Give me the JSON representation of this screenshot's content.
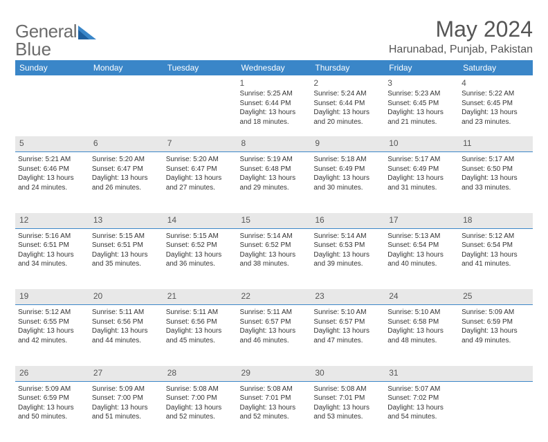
{
  "type": "calendar",
  "logo": {
    "text1": "General",
    "text2": "Blue",
    "accent_color": "#3a86c8",
    "text_color": "#6b6b6b"
  },
  "title": "May 2024",
  "location": "Harunabad, Punjab, Pakistan",
  "colors": {
    "header_bg": "#3a86c8",
    "header_text": "#ffffff",
    "row_divider": "#3a86c8",
    "weekday_label_bg": "#e8e8e8",
    "text": "#333333",
    "muted": "#555555",
    "background": "#ffffff"
  },
  "fonts": {
    "title_size": 32,
    "location_size": 16,
    "dow_size": 12,
    "daynum_size": 12,
    "body_size": 10
  },
  "days_of_week": [
    "Sunday",
    "Monday",
    "Tuesday",
    "Wednesday",
    "Thursday",
    "Friday",
    "Saturday"
  ],
  "weeks": [
    [
      null,
      null,
      null,
      {
        "n": "1",
        "sunrise": "5:25 AM",
        "sunset": "6:44 PM",
        "dl1": "Daylight: 13 hours",
        "dl2": "and 18 minutes."
      },
      {
        "n": "2",
        "sunrise": "5:24 AM",
        "sunset": "6:44 PM",
        "dl1": "Daylight: 13 hours",
        "dl2": "and 20 minutes."
      },
      {
        "n": "3",
        "sunrise": "5:23 AM",
        "sunset": "6:45 PM",
        "dl1": "Daylight: 13 hours",
        "dl2": "and 21 minutes."
      },
      {
        "n": "4",
        "sunrise": "5:22 AM",
        "sunset": "6:45 PM",
        "dl1": "Daylight: 13 hours",
        "dl2": "and 23 minutes."
      }
    ],
    [
      {
        "n": "5",
        "sunrise": "5:21 AM",
        "sunset": "6:46 PM",
        "dl1": "Daylight: 13 hours",
        "dl2": "and 24 minutes."
      },
      {
        "n": "6",
        "sunrise": "5:20 AM",
        "sunset": "6:47 PM",
        "dl1": "Daylight: 13 hours",
        "dl2": "and 26 minutes."
      },
      {
        "n": "7",
        "sunrise": "5:20 AM",
        "sunset": "6:47 PM",
        "dl1": "Daylight: 13 hours",
        "dl2": "and 27 minutes."
      },
      {
        "n": "8",
        "sunrise": "5:19 AM",
        "sunset": "6:48 PM",
        "dl1": "Daylight: 13 hours",
        "dl2": "and 29 minutes."
      },
      {
        "n": "9",
        "sunrise": "5:18 AM",
        "sunset": "6:49 PM",
        "dl1": "Daylight: 13 hours",
        "dl2": "and 30 minutes."
      },
      {
        "n": "10",
        "sunrise": "5:17 AM",
        "sunset": "6:49 PM",
        "dl1": "Daylight: 13 hours",
        "dl2": "and 31 minutes."
      },
      {
        "n": "11",
        "sunrise": "5:17 AM",
        "sunset": "6:50 PM",
        "dl1": "Daylight: 13 hours",
        "dl2": "and 33 minutes."
      }
    ],
    [
      {
        "n": "12",
        "sunrise": "5:16 AM",
        "sunset": "6:51 PM",
        "dl1": "Daylight: 13 hours",
        "dl2": "and 34 minutes."
      },
      {
        "n": "13",
        "sunrise": "5:15 AM",
        "sunset": "6:51 PM",
        "dl1": "Daylight: 13 hours",
        "dl2": "and 35 minutes."
      },
      {
        "n": "14",
        "sunrise": "5:15 AM",
        "sunset": "6:52 PM",
        "dl1": "Daylight: 13 hours",
        "dl2": "and 36 minutes."
      },
      {
        "n": "15",
        "sunrise": "5:14 AM",
        "sunset": "6:52 PM",
        "dl1": "Daylight: 13 hours",
        "dl2": "and 38 minutes."
      },
      {
        "n": "16",
        "sunrise": "5:14 AM",
        "sunset": "6:53 PM",
        "dl1": "Daylight: 13 hours",
        "dl2": "and 39 minutes."
      },
      {
        "n": "17",
        "sunrise": "5:13 AM",
        "sunset": "6:54 PM",
        "dl1": "Daylight: 13 hours",
        "dl2": "and 40 minutes."
      },
      {
        "n": "18",
        "sunrise": "5:12 AM",
        "sunset": "6:54 PM",
        "dl1": "Daylight: 13 hours",
        "dl2": "and 41 minutes."
      }
    ],
    [
      {
        "n": "19",
        "sunrise": "5:12 AM",
        "sunset": "6:55 PM",
        "dl1": "Daylight: 13 hours",
        "dl2": "and 42 minutes."
      },
      {
        "n": "20",
        "sunrise": "5:11 AM",
        "sunset": "6:56 PM",
        "dl1": "Daylight: 13 hours",
        "dl2": "and 44 minutes."
      },
      {
        "n": "21",
        "sunrise": "5:11 AM",
        "sunset": "6:56 PM",
        "dl1": "Daylight: 13 hours",
        "dl2": "and 45 minutes."
      },
      {
        "n": "22",
        "sunrise": "5:11 AM",
        "sunset": "6:57 PM",
        "dl1": "Daylight: 13 hours",
        "dl2": "and 46 minutes."
      },
      {
        "n": "23",
        "sunrise": "5:10 AM",
        "sunset": "6:57 PM",
        "dl1": "Daylight: 13 hours",
        "dl2": "and 47 minutes."
      },
      {
        "n": "24",
        "sunrise": "5:10 AM",
        "sunset": "6:58 PM",
        "dl1": "Daylight: 13 hours",
        "dl2": "and 48 minutes."
      },
      {
        "n": "25",
        "sunrise": "5:09 AM",
        "sunset": "6:59 PM",
        "dl1": "Daylight: 13 hours",
        "dl2": "and 49 minutes."
      }
    ],
    [
      {
        "n": "26",
        "sunrise": "5:09 AM",
        "sunset": "6:59 PM",
        "dl1": "Daylight: 13 hours",
        "dl2": "and 50 minutes."
      },
      {
        "n": "27",
        "sunrise": "5:09 AM",
        "sunset": "7:00 PM",
        "dl1": "Daylight: 13 hours",
        "dl2": "and 51 minutes."
      },
      {
        "n": "28",
        "sunrise": "5:08 AM",
        "sunset": "7:00 PM",
        "dl1": "Daylight: 13 hours",
        "dl2": "and 52 minutes."
      },
      {
        "n": "29",
        "sunrise": "5:08 AM",
        "sunset": "7:01 PM",
        "dl1": "Daylight: 13 hours",
        "dl2": "and 52 minutes."
      },
      {
        "n": "30",
        "sunrise": "5:08 AM",
        "sunset": "7:01 PM",
        "dl1": "Daylight: 13 hours",
        "dl2": "and 53 minutes."
      },
      {
        "n": "31",
        "sunrise": "5:07 AM",
        "sunset": "7:02 PM",
        "dl1": "Daylight: 13 hours",
        "dl2": "and 54 minutes."
      },
      null
    ]
  ]
}
